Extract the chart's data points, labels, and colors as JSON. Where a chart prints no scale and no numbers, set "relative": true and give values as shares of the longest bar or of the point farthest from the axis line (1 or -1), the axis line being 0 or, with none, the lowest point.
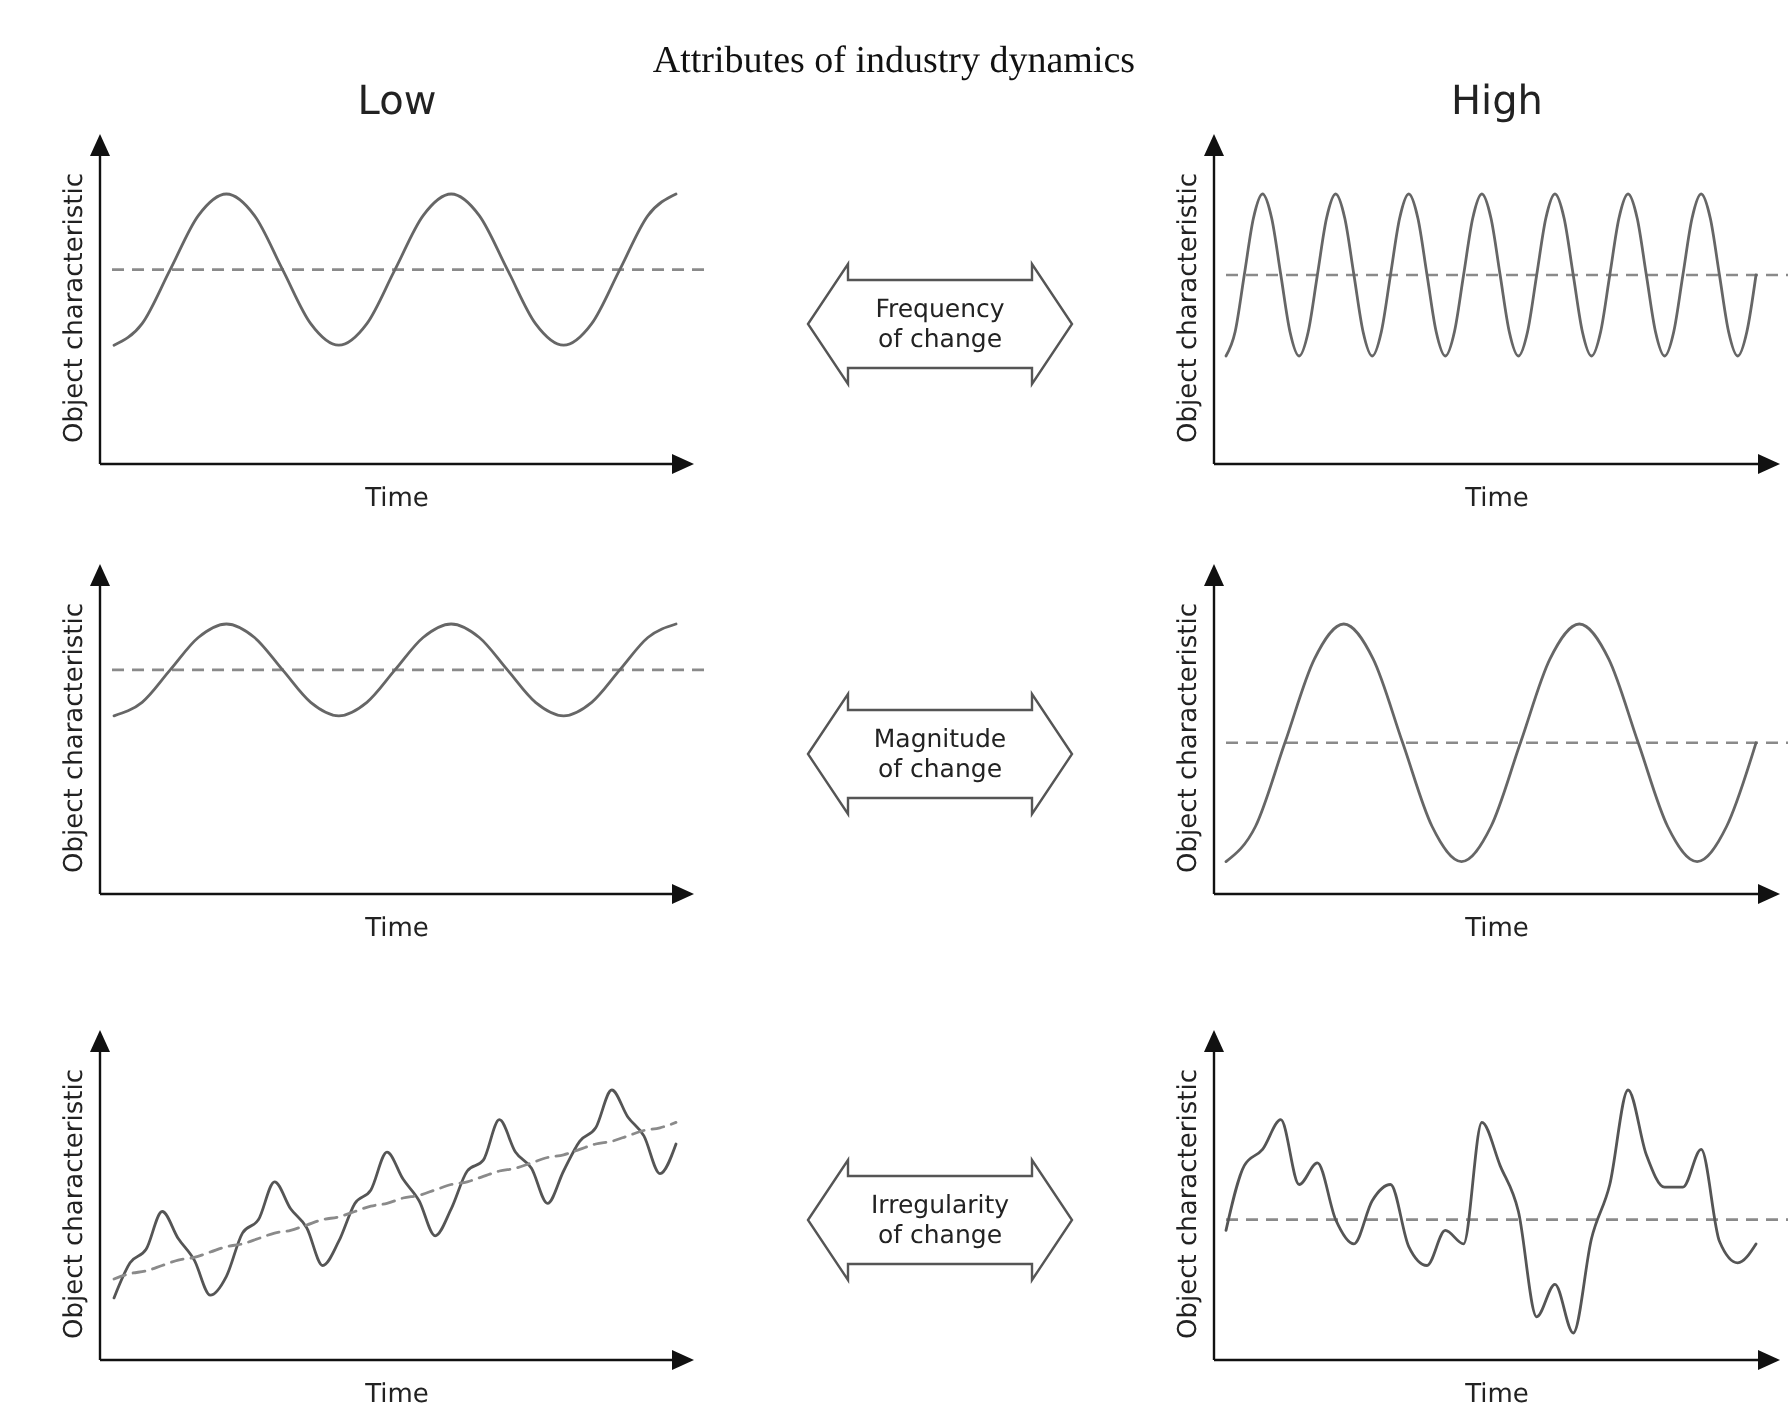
{
  "chart_data": [
    {
      "type": "other",
      "title": "Attributes of industry dynamics"
    },
    {
      "type": "line",
      "title": "Low",
      "xlabel": "Time",
      "ylabel": "Object characteristic",
      "relative": true,
      "categories": [
        null,
        null,
        null,
        null,
        null,
        null,
        null,
        null,
        null,
        null,
        null,
        null,
        null,
        null,
        null,
        null,
        null,
        null,
        null,
        null,
        null
      ],
      "series": [
        {
          "color": "#666666",
          "values": [
            0.44,
            0.52,
            0.72,
            0.92,
            1.0,
            0.92,
            0.72,
            0.52,
            0.44,
            0.52,
            0.72,
            0.92,
            1.0,
            0.92,
            0.72,
            0.52,
            0.44,
            0.52,
            0.72,
            0.92,
            1.0
          ]
        }
      ],
      "ref_lines": [
        {
          "axis": "y",
          "value": 0.72,
          "color": "#8a8a8a",
          "line_style": "dashed"
        }
      ]
    },
    {
      "type": "other",
      "title": "Frequency of change"
    },
    {
      "type": "line",
      "title": "High",
      "xlabel": "Time",
      "ylabel": "Object characteristic",
      "relative": true,
      "categories": [
        null,
        null,
        null,
        null,
        null,
        null,
        null,
        null,
        null,
        null,
        null,
        null,
        null,
        null,
        null,
        null,
        null,
        null,
        null,
        null,
        null,
        null,
        null,
        null,
        null,
        null,
        null,
        null,
        null,
        null,
        null,
        null,
        null,
        null,
        null,
        null,
        null,
        null,
        null,
        null,
        null,
        null,
        null,
        null,
        null,
        null,
        null,
        null,
        null,
        null,
        null,
        null,
        null,
        null,
        null,
        null,
        null,
        null,
        null
      ],
      "series": [
        {
          "color": "#666666",
          "values": [
            0.4,
            0.49,
            0.7,
            0.91,
            1.0,
            0.91,
            0.7,
            0.49,
            0.4,
            0.49,
            0.7,
            0.91,
            1.0,
            0.91,
            0.7,
            0.49,
            0.4,
            0.49,
            0.7,
            0.91,
            1.0,
            0.91,
            0.7,
            0.49,
            0.4,
            0.49,
            0.7,
            0.91,
            1.0,
            0.91,
            0.7,
            0.49,
            0.4,
            0.49,
            0.7,
            0.91,
            1.0,
            0.91,
            0.7,
            0.49,
            0.4,
            0.49,
            0.7,
            0.91,
            1.0,
            0.91,
            0.7,
            0.49,
            0.4,
            0.49,
            0.7,
            0.91,
            1.0,
            0.91,
            0.7,
            0.49,
            0.4,
            0.49,
            0.7
          ]
        }
      ],
      "ref_lines": [
        {
          "axis": "y",
          "value": 0.7,
          "color": "#8a8a8a",
          "line_style": "dashed"
        }
      ]
    },
    {
      "type": "line",
      "xlabel": "Time",
      "ylabel": "Object characteristic",
      "relative": true,
      "categories": [
        null,
        null,
        null,
        null,
        null,
        null,
        null,
        null,
        null,
        null,
        null,
        null,
        null,
        null,
        null,
        null,
        null,
        null,
        null,
        null,
        null
      ],
      "series": [
        {
          "color": "#666666",
          "values": [
            0.66,
            0.71,
            0.83,
            0.95,
            1.0,
            0.95,
            0.83,
            0.71,
            0.66,
            0.71,
            0.83,
            0.95,
            1.0,
            0.95,
            0.83,
            0.71,
            0.66,
            0.71,
            0.83,
            0.95,
            1.0
          ]
        }
      ],
      "ref_lines": [
        {
          "axis": "y",
          "value": 0.83,
          "color": "#8a8a8a",
          "line_style": "dashed"
        }
      ]
    },
    {
      "type": "other",
      "title": "Magnitude of change"
    },
    {
      "type": "line",
      "xlabel": "Time",
      "ylabel": "Object characteristic",
      "relative": true,
      "categories": [
        null,
        null,
        null,
        null,
        null,
        null,
        null,
        null,
        null,
        null,
        null,
        null,
        null,
        null,
        null,
        null,
        null,
        null,
        null
      ],
      "series": [
        {
          "color": "#666666",
          "values": [
            0.12,
            0.25,
            0.56,
            0.87,
            1.0,
            0.87,
            0.56,
            0.25,
            0.12,
            0.25,
            0.56,
            0.87,
            1.0,
            0.87,
            0.56,
            0.25,
            0.12,
            0.25,
            0.56
          ]
        }
      ],
      "ref_lines": [
        {
          "axis": "y",
          "value": 0.56,
          "color": "#8a8a8a",
          "line_style": "dashed"
        }
      ]
    },
    {
      "type": "line",
      "xlabel": "Time",
      "ylabel": "Object characteristic",
      "relative": true,
      "categories": [
        null,
        null,
        null,
        null,
        null,
        null,
        null,
        null,
        null,
        null,
        null,
        null,
        null,
        null,
        null,
        null,
        null,
        null,
        null,
        null,
        null,
        null,
        null,
        null,
        null,
        null,
        null,
        null,
        null,
        null,
        null,
        null,
        null,
        null,
        null,
        null
      ],
      "series": [
        {
          "color": "#555555",
          "values": [
            0.23,
            0.36,
            0.41,
            0.55,
            0.45,
            0.37,
            0.24,
            0.31,
            0.47,
            0.52,
            0.66,
            0.56,
            0.49,
            0.35,
            0.44,
            0.58,
            0.63,
            0.77,
            0.67,
            0.59,
            0.46,
            0.56,
            0.7,
            0.74,
            0.89,
            0.77,
            0.71,
            0.58,
            0.7,
            0.81,
            0.86,
            1.0,
            0.9,
            0.83,
            0.69,
            0.8
          ]
        },
        {
          "type": "line",
          "color": "#8a8a8a",
          "line_style": "dashed",
          "values": [
            0.3,
            0.32,
            0.33,
            0.35,
            0.37,
            0.38,
            0.4,
            0.42,
            0.43,
            0.45,
            0.47,
            0.48,
            0.5,
            0.52,
            0.53,
            0.55,
            0.57,
            0.58,
            0.6,
            0.61,
            0.63,
            0.65,
            0.66,
            0.68,
            0.7,
            0.71,
            0.73,
            0.75,
            0.76,
            0.78,
            0.8,
            0.81,
            0.83,
            0.85,
            0.86,
            0.88
          ]
        }
      ]
    },
    {
      "type": "other",
      "title": "Irregularity of change"
    },
    {
      "type": "line",
      "xlabel": "Time",
      "ylabel": "Object characteristic",
      "relative": true,
      "categories": [
        null,
        null,
        null,
        null,
        null,
        null,
        null,
        null,
        null,
        null,
        null,
        null,
        null,
        null,
        null,
        null,
        null,
        null,
        null,
        null,
        null,
        null,
        null,
        null,
        null,
        null,
        null,
        null,
        null,
        null
      ],
      "series": [
        {
          "color": "#555555",
          "values": [
            0.48,
            0.72,
            0.78,
            0.89,
            0.65,
            0.73,
            0.52,
            0.43,
            0.59,
            0.65,
            0.42,
            0.35,
            0.48,
            0.43,
            0.88,
            0.72,
            0.55,
            0.16,
            0.28,
            0.1,
            0.45,
            0.65,
            1.0,
            0.76,
            0.64,
            0.64,
            0.78,
            0.44,
            0.36,
            0.43
          ]
        }
      ],
      "ref_lines": [
        {
          "axis": "y",
          "value": 0.52,
          "color": "#8a8a8a",
          "line_style": "dashed"
        }
      ]
    }
  ]
}
